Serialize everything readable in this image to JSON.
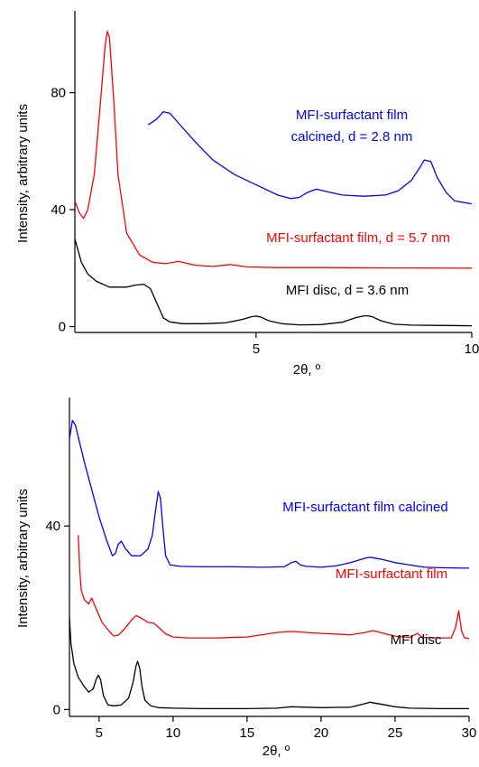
{
  "chart_data": [
    {
      "type": "line",
      "title": "",
      "xlabel": "2θ, º",
      "ylabel": "Intensity, arbitrary units",
      "xlim": [
        0.8,
        10
      ],
      "ylim": [
        -2,
        108
      ],
      "x_ticks": [
        5,
        10
      ],
      "x_tick_labels": [
        "5",
        "10"
      ],
      "y_ticks": [
        0,
        40,
        80
      ],
      "y_tick_labels": [
        "0",
        "40",
        "80"
      ],
      "grid": false,
      "series": [
        {
          "name": "MFI-surfactant film calcined, d = 2.8 nm",
          "color": "#0000ff",
          "x": [
            2.5,
            2.7,
            2.85,
            3.0,
            3.3,
            3.6,
            4.0,
            4.5,
            5.0,
            5.5,
            5.8,
            6.0,
            6.2,
            6.4,
            6.7,
            7.0,
            7.5,
            8.0,
            8.3,
            8.6,
            8.8,
            8.9,
            9.05,
            9.2,
            9.4,
            9.6,
            10.0
          ],
          "y": [
            69,
            71,
            73.5,
            73,
            68,
            63,
            57,
            52,
            48.5,
            45,
            43.8,
            44.2,
            46,
            47,
            46,
            45,
            44.6,
            45,
            46.5,
            50,
            54.5,
            57,
            56.5,
            51,
            46,
            43,
            42
          ]
        },
        {
          "name": "MFI-surfactant film, d = 5.7 nm",
          "color": "#ff0000",
          "x": [
            0.8,
            0.9,
            1.0,
            1.1,
            1.25,
            1.4,
            1.5,
            1.55,
            1.6,
            1.7,
            1.8,
            2.0,
            2.3,
            2.6,
            2.9,
            3.2,
            3.6,
            4.0,
            4.4,
            4.8,
            5.5,
            6.5,
            8.0,
            10.0
          ],
          "y": [
            43,
            39,
            37,
            40,
            52,
            78,
            96,
            101,
            99,
            78,
            52,
            32,
            24.5,
            22,
            21.5,
            22.3,
            21,
            20.6,
            21.2,
            20.4,
            20.2,
            20.2,
            20.1,
            20.0
          ]
        },
        {
          "name": "MFI disc, d = 3.6 nm",
          "color": "#000000",
          "x": [
            0.8,
            0.95,
            1.1,
            1.3,
            1.6,
            2.0,
            2.2,
            2.4,
            2.55,
            2.7,
            2.85,
            3.0,
            3.3,
            3.8,
            4.3,
            4.7,
            4.9,
            5.0,
            5.1,
            5.3,
            5.6,
            6.0,
            6.5,
            7.0,
            7.3,
            7.5,
            7.6,
            7.7,
            7.9,
            8.2,
            8.6,
            9.2,
            10.0
          ],
          "y": [
            30,
            22,
            18,
            15.5,
            13.5,
            13.5,
            14.2,
            14.5,
            13,
            8,
            3,
            1.6,
            1,
            1,
            1.3,
            2.5,
            3.4,
            3.6,
            3.3,
            2,
            1,
            0.6,
            0.7,
            1.5,
            3,
            3.7,
            3.7,
            3.3,
            2,
            0.8,
            0.5,
            0.4,
            0.3
          ]
        }
      ],
      "annotations": [
        {
          "line1": "MFI-surfactant film",
          "line2": "calcined, d = 2.8 nm",
          "color": "#0000ff",
          "x": 6.6,
          "y": 72.5
        },
        {
          "line1": "MFI-surfactant film, d = 5.7 nm",
          "color": "#ff0000",
          "x": 6.9,
          "y": 27.3
        },
        {
          "line1": "MFI disc, d = 3.6 nm",
          "color": "#000000",
          "x": 6.6,
          "y": 8
        }
      ]
    },
    {
      "type": "line",
      "title": "",
      "xlabel": "2θ, º",
      "ylabel": "Intensity, arbitrary units",
      "xlim": [
        3,
        30
      ],
      "ylim": [
        -1.5,
        68
      ],
      "x_ticks": [
        5,
        10,
        15,
        20,
        25,
        30
      ],
      "x_tick_labels": [
        "5",
        "10",
        "15",
        "20",
        "25",
        "30"
      ],
      "y_ticks": [
        0,
        40
      ],
      "y_tick_labels": [
        "0",
        "40"
      ],
      "grid": false,
      "series": [
        {
          "name": "MFI-surfactant film calcined",
          "color": "#0000ff",
          "x": [
            3.0,
            3.2,
            3.4,
            3.7,
            4.0,
            4.5,
            5.0,
            5.5,
            5.9,
            6.1,
            6.3,
            6.5,
            6.8,
            7.2,
            7.8,
            8.3,
            8.6,
            8.8,
            9.0,
            9.15,
            9.3,
            9.5,
            9.8,
            10.5,
            12,
            14,
            16,
            17.5,
            18.0,
            18.3,
            18.6,
            19,
            20,
            21,
            22,
            23,
            23.3,
            24,
            25,
            26,
            27,
            28,
            30
          ],
          "y": [
            59,
            63,
            62,
            58,
            54,
            48,
            42,
            37,
            33.5,
            34,
            36,
            36.7,
            35,
            33.5,
            33.5,
            35,
            38,
            43,
            47.5,
            46,
            40,
            33.5,
            31.5,
            31.2,
            31.1,
            31.1,
            31,
            31.1,
            32,
            32.3,
            31.5,
            31.2,
            31,
            31.3,
            32,
            33,
            33.2,
            32.8,
            32,
            31.5,
            31,
            30.9,
            30.8
          ]
        },
        {
          "name": "MFI-surfactant film",
          "color": "#ff0000",
          "x": [
            3.6,
            3.7,
            3.8,
            4.0,
            4.3,
            4.5,
            4.8,
            5.2,
            5.7,
            6.0,
            6.3,
            6.7,
            7.2,
            7.5,
            7.8,
            8.3,
            8.7,
            9.0,
            9.5,
            10,
            11,
            13,
            15,
            16,
            17,
            18,
            20,
            22,
            23,
            23.5,
            24,
            25,
            26,
            26.5,
            26.8,
            27,
            28,
            28.8,
            29.1,
            29.3,
            29.5,
            29.7,
            30
          ],
          "y": [
            38,
            30,
            26,
            24,
            23,
            24.3,
            22,
            19,
            17,
            16,
            16.2,
            17.5,
            19.5,
            20.5,
            20,
            19,
            18.8,
            18,
            16.5,
            15.8,
            15.6,
            15.6,
            15.8,
            16.3,
            16.8,
            17,
            16.6,
            16.3,
            16.8,
            17.2,
            16.8,
            16,
            15.7,
            16.6,
            15.8,
            15.7,
            15.6,
            15.6,
            18,
            21.5,
            17,
            15.6,
            15.5
          ]
        },
        {
          "name": "MFI disc",
          "color": "#000000",
          "x": [
            3.0,
            3.1,
            3.3,
            3.6,
            4.0,
            4.3,
            4.6,
            4.8,
            4.95,
            5.1,
            5.3,
            5.6,
            6.0,
            6.5,
            7.0,
            7.3,
            7.5,
            7.6,
            7.75,
            7.9,
            8.1,
            8.5,
            9,
            10,
            12,
            15,
            17,
            18,
            20,
            22,
            23,
            23.3,
            24,
            25,
            26,
            28,
            30
          ],
          "y": [
            20,
            14.5,
            10,
            7,
            5,
            3.8,
            4.5,
            6.5,
            7.5,
            6.5,
            3,
            1,
            0.8,
            1,
            2.5,
            6,
            9.5,
            10.5,
            9,
            5,
            2,
            0.8,
            0.4,
            0.3,
            0.2,
            0.2,
            0.3,
            0.6,
            0.4,
            0.5,
            1.3,
            1.6,
            1.2,
            0.6,
            0.3,
            0.2,
            0.2
          ]
        }
      ],
      "annotations": [
        {
          "line1": "MFI-surfactant film calcined",
          "color": "#0000ff",
          "x": 20.2,
          "y": 40.4
        },
        {
          "line1": "MFI-surfactant film",
          "color": "#ff0000",
          "x": 25.2,
          "y": 25.5
        },
        {
          "line1": "MFI disc",
          "color": "#000000",
          "x": 26.7,
          "y": 6.5
        }
      ]
    }
  ]
}
